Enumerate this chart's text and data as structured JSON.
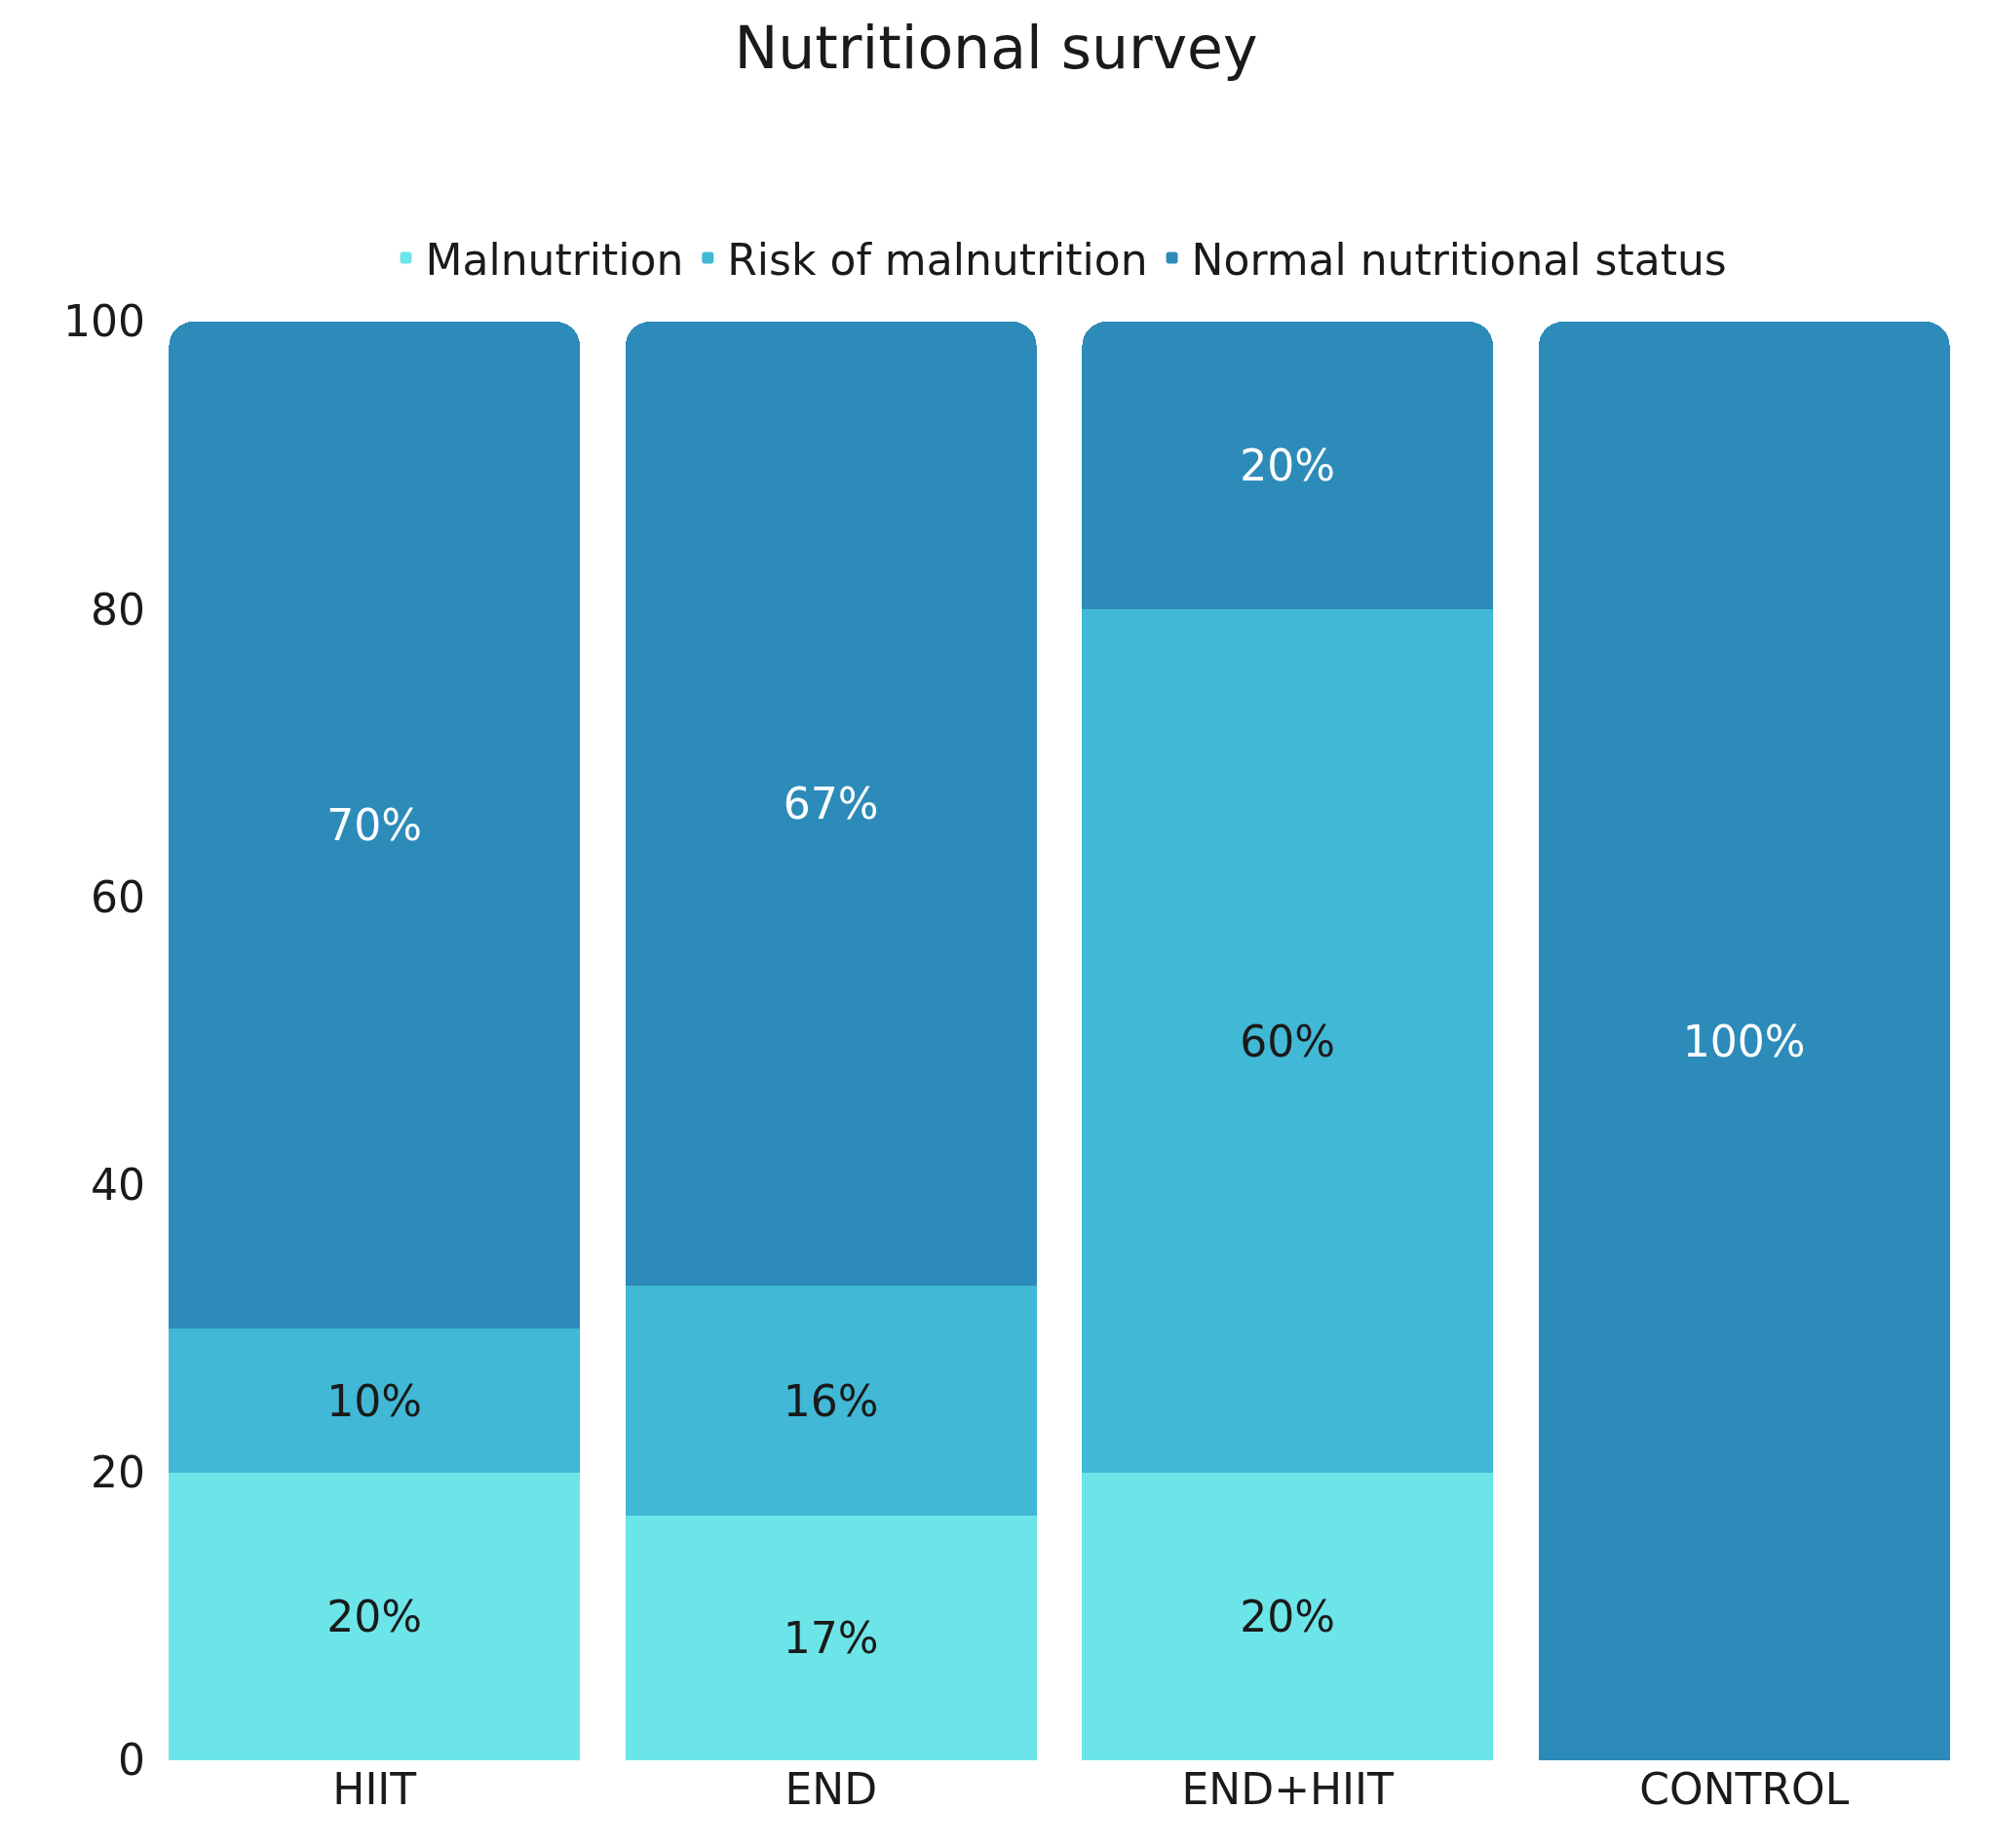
{
  "chart_data": {
    "type": "bar",
    "title": "Nutritional survey",
    "stacked": true,
    "legend": "top",
    "categories": [
      "HIIT",
      "END",
      "END+HIIT",
      "CONTROL"
    ],
    "ylim": [
      0,
      100
    ],
    "yticks": [
      0,
      20,
      40,
      60,
      80,
      100
    ],
    "series": [
      {
        "name": "Malnutrition",
        "color": "#6ce5e8",
        "values": [
          20,
          17,
          20,
          0
        ],
        "value_labels": [
          "20%",
          "17%",
          "20%",
          null
        ]
      },
      {
        "name": "Risk of malnutrition",
        "color": "#41b8d5",
        "values": [
          10,
          16,
          60,
          0
        ],
        "value_labels": [
          "10%",
          "16%",
          "60%",
          null
        ]
      },
      {
        "name": "Normal nutritional status",
        "color": "#2d8bba",
        "values": [
          70,
          67,
          20,
          100
        ],
        "value_labels": [
          "70%",
          "67%",
          "20%",
          "100%"
        ]
      }
    ]
  }
}
